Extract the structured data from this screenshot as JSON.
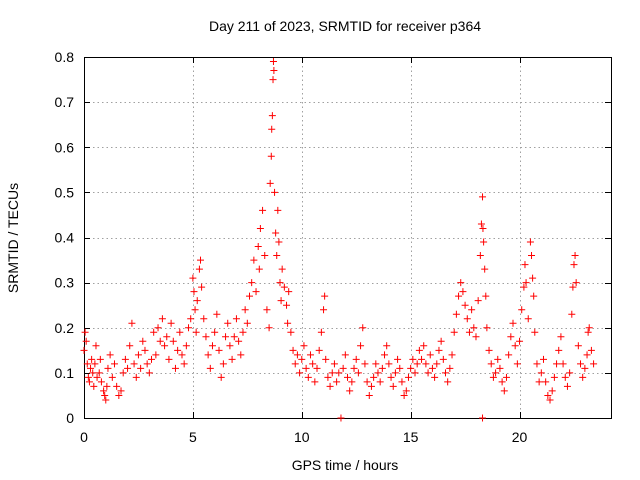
{
  "chart_data": {
    "type": "scatter",
    "title": "Day 211 of 2023, SRMTID for receiver p364",
    "xlabel": "GPS time / hours",
    "ylabel": "SRMTID / TECUs",
    "xlim": [
      0,
      24.2
    ],
    "ylim": [
      0,
      0.8
    ],
    "x_ticks": [
      0,
      5,
      10,
      15,
      20
    ],
    "x_tick_labels": [
      "0",
      "5",
      "10",
      "15",
      "20"
    ],
    "y_ticks": [
      0,
      0.1,
      0.2,
      0.3,
      0.4,
      0.5,
      0.6,
      0.7,
      0.8
    ],
    "y_tick_labels": [
      "0",
      "0.1",
      "0.2",
      "0.3",
      "0.4",
      "0.5",
      "0.6",
      "0.7",
      "0.8"
    ],
    "grid": true,
    "marker": "plus",
    "color": "#ff0000",
    "series": [
      {
        "name": "SRMTID",
        "points": [
          [
            0.0,
            0.15
          ],
          [
            0.05,
            0.19
          ],
          [
            0.1,
            0.17
          ],
          [
            0.15,
            0.12
          ],
          [
            0.2,
            0.09
          ],
          [
            0.25,
            0.08
          ],
          [
            0.3,
            0.11
          ],
          [
            0.35,
            0.13
          ],
          [
            0.4,
            0.1
          ],
          [
            0.45,
            0.07
          ],
          [
            0.5,
            0.12
          ],
          [
            0.55,
            0.16
          ],
          [
            0.6,
            0.09
          ],
          [
            0.7,
            0.1
          ],
          [
            0.75,
            0.13
          ],
          [
            0.8,
            0.08
          ],
          [
            0.9,
            0.06
          ],
          [
            0.95,
            0.05
          ],
          [
            1.0,
            0.04
          ],
          [
            1.05,
            0.07
          ],
          [
            1.1,
            0.11
          ],
          [
            1.2,
            0.14
          ],
          [
            1.3,
            0.09
          ],
          [
            1.4,
            0.12
          ],
          [
            1.5,
            0.07
          ],
          [
            1.6,
            0.05
          ],
          [
            1.7,
            0.06
          ],
          [
            1.8,
            0.1
          ],
          [
            1.9,
            0.13
          ],
          [
            2.0,
            0.11
          ],
          [
            2.1,
            0.16
          ],
          [
            2.2,
            0.21
          ],
          [
            2.3,
            0.12
          ],
          [
            2.4,
            0.09
          ],
          [
            2.5,
            0.14
          ],
          [
            2.6,
            0.11
          ],
          [
            2.7,
            0.17
          ],
          [
            2.8,
            0.15
          ],
          [
            2.9,
            0.12
          ],
          [
            3.0,
            0.1
          ],
          [
            3.1,
            0.13
          ],
          [
            3.2,
            0.19
          ],
          [
            3.3,
            0.14
          ],
          [
            3.4,
            0.2
          ],
          [
            3.5,
            0.17
          ],
          [
            3.6,
            0.22
          ],
          [
            3.7,
            0.16
          ],
          [
            3.8,
            0.18
          ],
          [
            3.9,
            0.13
          ],
          [
            4.0,
            0.21
          ],
          [
            4.1,
            0.17
          ],
          [
            4.2,
            0.11
          ],
          [
            4.3,
            0.15
          ],
          [
            4.4,
            0.19
          ],
          [
            4.5,
            0.14
          ],
          [
            4.6,
            0.12
          ],
          [
            4.7,
            0.16
          ],
          [
            4.8,
            0.2
          ],
          [
            4.9,
            0.22
          ],
          [
            5.0,
            0.31
          ],
          [
            5.05,
            0.28
          ],
          [
            5.1,
            0.24
          ],
          [
            5.15,
            0.19
          ],
          [
            5.2,
            0.26
          ],
          [
            5.3,
            0.33
          ],
          [
            5.35,
            0.35
          ],
          [
            5.4,
            0.29
          ],
          [
            5.5,
            0.22
          ],
          [
            5.6,
            0.18
          ],
          [
            5.7,
            0.14
          ],
          [
            5.8,
            0.11
          ],
          [
            5.9,
            0.16
          ],
          [
            6.0,
            0.19
          ],
          [
            6.1,
            0.23
          ],
          [
            6.2,
            0.15
          ],
          [
            6.3,
            0.09
          ],
          [
            6.4,
            0.12
          ],
          [
            6.5,
            0.18
          ],
          [
            6.6,
            0.21
          ],
          [
            6.7,
            0.16
          ],
          [
            6.8,
            0.13
          ],
          [
            6.9,
            0.18
          ],
          [
            7.0,
            0.22
          ],
          [
            7.1,
            0.17
          ],
          [
            7.2,
            0.14
          ],
          [
            7.3,
            0.19
          ],
          [
            7.4,
            0.24
          ],
          [
            7.5,
            0.21
          ],
          [
            7.6,
            0.27
          ],
          [
            7.7,
            0.3
          ],
          [
            7.8,
            0.35
          ],
          [
            7.9,
            0.28
          ],
          [
            8.0,
            0.38
          ],
          [
            8.05,
            0.33
          ],
          [
            8.1,
            0.42
          ],
          [
            8.2,
            0.46
          ],
          [
            8.3,
            0.36
          ],
          [
            8.4,
            0.24
          ],
          [
            8.5,
            0.2
          ],
          [
            8.55,
            0.52
          ],
          [
            8.6,
            0.58
          ],
          [
            8.62,
            0.64
          ],
          [
            8.65,
            0.67
          ],
          [
            8.68,
            0.75
          ],
          [
            8.7,
            0.79
          ],
          [
            8.72,
            0.77
          ],
          [
            8.75,
            0.5
          ],
          [
            8.8,
            0.41
          ],
          [
            8.85,
            0.36
          ],
          [
            8.9,
            0.46
          ],
          [
            8.95,
            0.39
          ],
          [
            9.0,
            0.3
          ],
          [
            9.05,
            0.26
          ],
          [
            9.1,
            0.33
          ],
          [
            9.2,
            0.29
          ],
          [
            9.3,
            0.25
          ],
          [
            9.35,
            0.21
          ],
          [
            9.4,
            0.28
          ],
          [
            9.5,
            0.19
          ],
          [
            9.6,
            0.15
          ],
          [
            9.7,
            0.12
          ],
          [
            9.8,
            0.14
          ],
          [
            9.9,
            0.1
          ],
          [
            10.0,
            0.13
          ],
          [
            10.1,
            0.16
          ],
          [
            10.2,
            0.11
          ],
          [
            10.3,
            0.09
          ],
          [
            10.4,
            0.14
          ],
          [
            10.5,
            0.12
          ],
          [
            10.6,
            0.08
          ],
          [
            10.7,
            0.11
          ],
          [
            10.8,
            0.15
          ],
          [
            10.9,
            0.19
          ],
          [
            11.0,
            0.24
          ],
          [
            11.05,
            0.27
          ],
          [
            11.1,
            0.13
          ],
          [
            11.2,
            0.09
          ],
          [
            11.3,
            0.07
          ],
          [
            11.4,
            0.1
          ],
          [
            11.5,
            0.12
          ],
          [
            11.6,
            0.08
          ],
          [
            11.7,
            0.1
          ],
          [
            11.8,
            0.0
          ],
          [
            11.9,
            0.11
          ],
          [
            12.0,
            0.14
          ],
          [
            12.1,
            0.09
          ],
          [
            12.2,
            0.06
          ],
          [
            12.3,
            0.08
          ],
          [
            12.4,
            0.11
          ],
          [
            12.5,
            0.13
          ],
          [
            12.6,
            0.1
          ],
          [
            12.7,
            0.16
          ],
          [
            12.8,
            0.2
          ],
          [
            12.9,
            0.12
          ],
          [
            13.0,
            0.08
          ],
          [
            13.1,
            0.05
          ],
          [
            13.2,
            0.07
          ],
          [
            13.3,
            0.09
          ],
          [
            13.4,
            0.12
          ],
          [
            13.5,
            0.1
          ],
          [
            13.6,
            0.08
          ],
          [
            13.7,
            0.11
          ],
          [
            13.8,
            0.14
          ],
          [
            13.9,
            0.16
          ],
          [
            14.0,
            0.12
          ],
          [
            14.1,
            0.09
          ],
          [
            14.2,
            0.07
          ],
          [
            14.3,
            0.1
          ],
          [
            14.4,
            0.13
          ],
          [
            14.5,
            0.11
          ],
          [
            14.6,
            0.08
          ],
          [
            14.7,
            0.05
          ],
          [
            14.8,
            0.06
          ],
          [
            14.9,
            0.09
          ],
          [
            15.0,
            0.11
          ],
          [
            15.1,
            0.13
          ],
          [
            15.2,
            0.1
          ],
          [
            15.3,
            0.12
          ],
          [
            15.4,
            0.15
          ],
          [
            15.5,
            0.13
          ],
          [
            15.6,
            0.16
          ],
          [
            15.7,
            0.12
          ],
          [
            15.8,
            0.1
          ],
          [
            15.9,
            0.14
          ],
          [
            16.0,
            0.11
          ],
          [
            16.1,
            0.09
          ],
          [
            16.2,
            0.12
          ],
          [
            16.3,
            0.15
          ],
          [
            16.4,
            0.17
          ],
          [
            16.5,
            0.13
          ],
          [
            16.6,
            0.1
          ],
          [
            16.7,
            0.08
          ],
          [
            16.8,
            0.11
          ],
          [
            16.9,
            0.14
          ],
          [
            17.0,
            0.19
          ],
          [
            17.1,
            0.23
          ],
          [
            17.2,
            0.27
          ],
          [
            17.3,
            0.3
          ],
          [
            17.4,
            0.28
          ],
          [
            17.5,
            0.25
          ],
          [
            17.6,
            0.22
          ],
          [
            17.7,
            0.19
          ],
          [
            17.8,
            0.24
          ],
          [
            17.9,
            0.2
          ],
          [
            18.0,
            0.18
          ],
          [
            18.1,
            0.26
          ],
          [
            18.2,
            0.36
          ],
          [
            18.25,
            0.43
          ],
          [
            18.3,
            0.49
          ],
          [
            18.32,
            0.42
          ],
          [
            18.35,
            0.39
          ],
          [
            18.4,
            0.33
          ],
          [
            18.45,
            0.27
          ],
          [
            18.5,
            0.2
          ],
          [
            18.3,
            0.0
          ],
          [
            18.6,
            0.15
          ],
          [
            18.7,
            0.12
          ],
          [
            18.8,
            0.09
          ],
          [
            18.9,
            0.1
          ],
          [
            19.0,
            0.13
          ],
          [
            19.1,
            0.11
          ],
          [
            19.2,
            0.08
          ],
          [
            19.3,
            0.06
          ],
          [
            19.4,
            0.09
          ],
          [
            19.5,
            0.14
          ],
          [
            19.6,
            0.18
          ],
          [
            19.7,
            0.21
          ],
          [
            19.8,
            0.16
          ],
          [
            19.9,
            0.12
          ],
          [
            20.0,
            0.17
          ],
          [
            20.1,
            0.24
          ],
          [
            20.2,
            0.29
          ],
          [
            20.25,
            0.34
          ],
          [
            20.3,
            0.3
          ],
          [
            20.4,
            0.22
          ],
          [
            20.5,
            0.39
          ],
          [
            20.55,
            0.36
          ],
          [
            20.6,
            0.31
          ],
          [
            20.65,
            0.27
          ],
          [
            20.7,
            0.19
          ],
          [
            20.8,
            0.12
          ],
          [
            20.9,
            0.08
          ],
          [
            21.0,
            0.1
          ],
          [
            21.1,
            0.13
          ],
          [
            21.2,
            0.08
          ],
          [
            21.3,
            0.05
          ],
          [
            21.4,
            0.04
          ],
          [
            21.5,
            0.06
          ],
          [
            21.6,
            0.09
          ],
          [
            21.7,
            0.12
          ],
          [
            21.8,
            0.15
          ],
          [
            21.9,
            0.18
          ],
          [
            22.0,
            0.12
          ],
          [
            22.1,
            0.09
          ],
          [
            22.2,
            0.07
          ],
          [
            22.3,
            0.1
          ],
          [
            22.4,
            0.23
          ],
          [
            22.45,
            0.29
          ],
          [
            22.5,
            0.34
          ],
          [
            22.55,
            0.36
          ],
          [
            22.6,
            0.3
          ],
          [
            22.7,
            0.16
          ],
          [
            22.8,
            0.12
          ],
          [
            22.9,
            0.09
          ],
          [
            23.0,
            0.11
          ],
          [
            23.1,
            0.14
          ],
          [
            23.15,
            0.19
          ],
          [
            23.2,
            0.2
          ],
          [
            23.3,
            0.15
          ],
          [
            23.4,
            0.12
          ]
        ]
      }
    ]
  }
}
